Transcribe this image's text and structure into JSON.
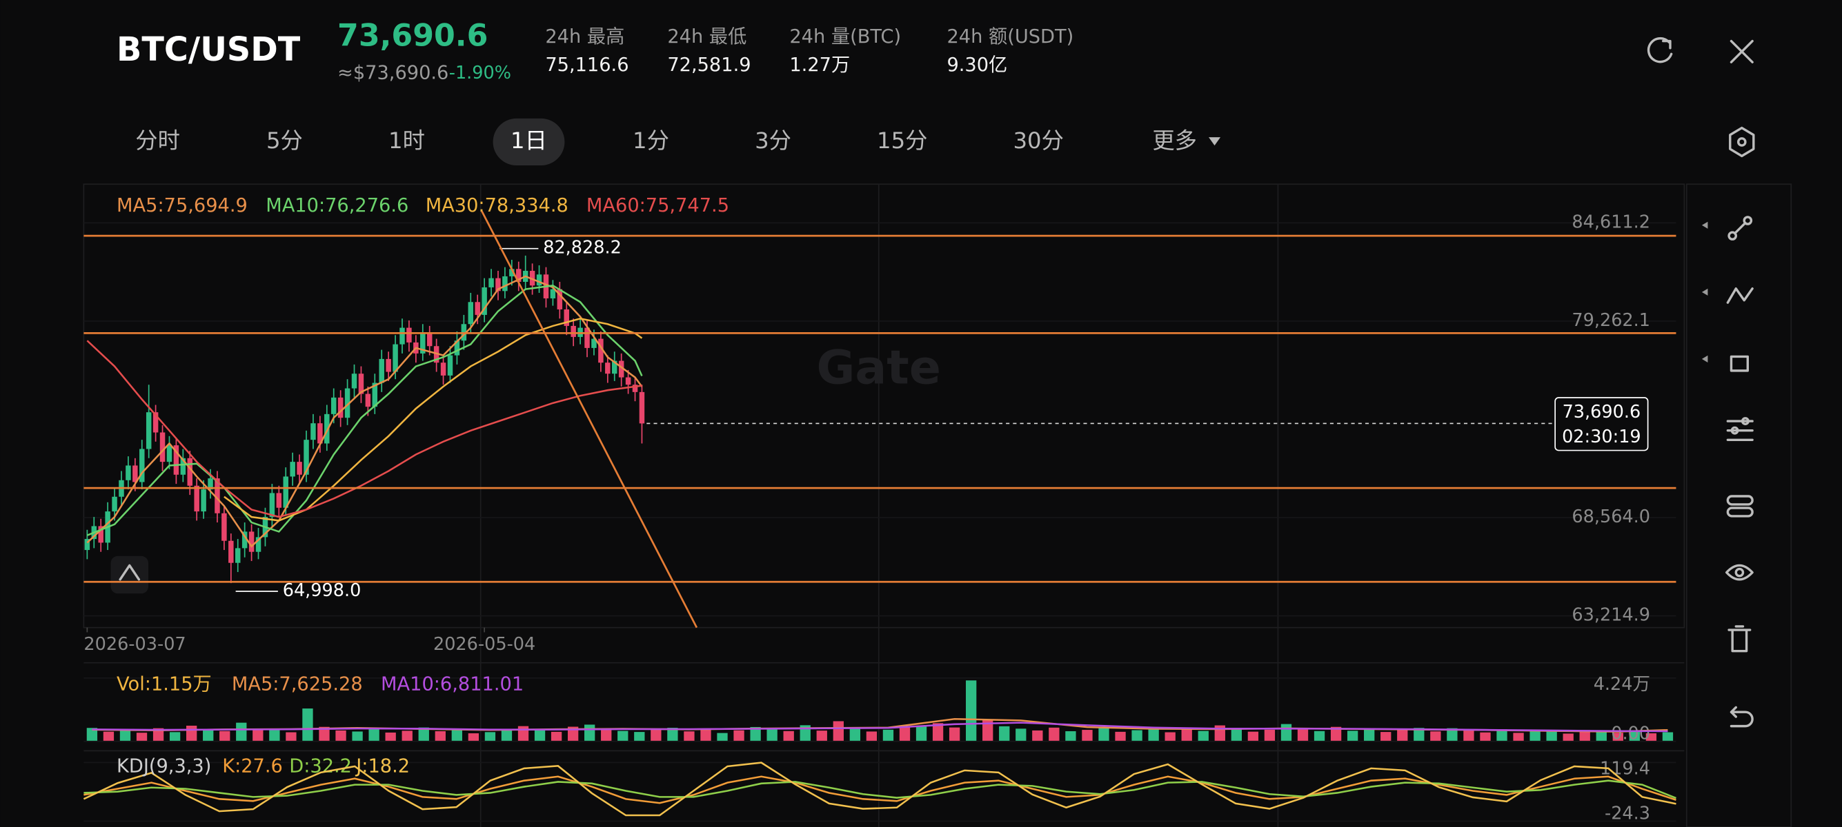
{
  "header": {
    "symbol": "BTC/USDT",
    "price": "73,690.6",
    "approx": "≈$73,690.6",
    "change": "-1.90%",
    "stats": [
      {
        "label": "24h  最高",
        "value": "75,116.6"
      },
      {
        "label": "24h  最低",
        "value": "72,581.9"
      },
      {
        "label": "24h  量(BTC)",
        "value": "1.27万"
      },
      {
        "label": "24h  额(USDT)",
        "value": "9.30亿"
      }
    ]
  },
  "tabs": {
    "items": [
      "分时",
      "5分",
      "1时",
      "1日",
      "1分",
      "3分",
      "15分",
      "30分",
      "更多"
    ],
    "active": 3
  },
  "watermark": "Gate",
  "chart_data": [
    {
      "type": "candlestick",
      "up_color": "#2ebd85",
      "down_color": "#e8456b",
      "xlim": [
        -0.5,
        232
      ],
      "ylim": [
        62576,
        86654
      ],
      "xticks": [
        {
          "value": 0,
          "label": "2026-03-07"
        },
        {
          "value": 58,
          "label": "2026-05-04"
        }
      ],
      "yticks": [
        {
          "value": 84611.2,
          "label": "84,611.2"
        },
        {
          "value": 79262.1,
          "label": "79,262.1"
        },
        {
          "value": 68564.0,
          "label": "68,564.0"
        },
        {
          "value": 63214.9,
          "label": "63,214.9"
        }
      ],
      "high_label": "82,828.2",
      "low_label": "64,998.0",
      "last_price": {
        "value": 73690.6,
        "label": "73,690.6"
      },
      "countdown": "02:30:19",
      "candles": {
        "open": [
          66800,
          67400,
          68100,
          67200,
          68900,
          69700,
          70600,
          71400,
          70500,
          72300,
          74300,
          73200,
          71600,
          72500,
          70900,
          71800,
          70300,
          68900,
          70100,
          70700,
          68800,
          67300,
          66100,
          66900,
          67800,
          66700,
          67500,
          68600,
          69900,
          69100,
          70800,
          71600,
          70900,
          72800,
          73700,
          72600,
          74200,
          75100,
          74000,
          75600,
          76400,
          75300,
          74600,
          75900,
          77200,
          76500,
          78000,
          78900,
          78100,
          77500,
          78600,
          77900,
          77000,
          76300,
          77400,
          78200,
          79100,
          80300,
          79600,
          81100,
          81600,
          80900,
          81700,
          82100,
          81400,
          82000,
          81200,
          81800,
          80500,
          81000,
          79900,
          79000,
          78400,
          78900,
          77800,
          78300,
          77000,
          76400,
          77100,
          76200,
          75800,
          75400
        ],
        "high": [
          67900,
          68600,
          68500,
          69400,
          70200,
          71100,
          71900,
          71800,
          72800,
          75800,
          74700,
          73600,
          73000,
          72900,
          72300,
          72200,
          70700,
          70600,
          71200,
          71100,
          69200,
          67700,
          67400,
          68300,
          68200,
          68000,
          69100,
          70400,
          70300,
          71300,
          72100,
          72000,
          73300,
          74200,
          74100,
          74700,
          75600,
          75500,
          76100,
          76900,
          76800,
          75700,
          76400,
          77700,
          77600,
          78500,
          79400,
          79300,
          78500,
          79100,
          79000,
          78300,
          77400,
          77900,
          78700,
          79600,
          80800,
          80700,
          81600,
          82100,
          82000,
          82200,
          82600,
          82500,
          82828.2,
          82400,
          82300,
          82200,
          81500,
          81400,
          80300,
          79400,
          79400,
          79300,
          78800,
          78700,
          77400,
          77600,
          77500,
          76600,
          76200,
          75800
        ],
        "low": [
          66300,
          66900,
          66700,
          66800,
          68400,
          69200,
          70100,
          70000,
          70100,
          71800,
          72700,
          71100,
          71200,
          70400,
          70500,
          69800,
          68400,
          68500,
          69600,
          68300,
          66800,
          64998.0,
          65600,
          66400,
          66200,
          66300,
          67000,
          68100,
          68600,
          68700,
          70300,
          70400,
          70500,
          72300,
          72100,
          72200,
          73700,
          73500,
          73600,
          75100,
          74800,
          74100,
          74200,
          75400,
          76000,
          76100,
          77500,
          77600,
          77000,
          77100,
          77400,
          76500,
          75800,
          75900,
          76900,
          77700,
          78600,
          79100,
          79200,
          80600,
          80400,
          80500,
          81200,
          80900,
          81000,
          80700,
          80800,
          80000,
          80100,
          79400,
          78500,
          77900,
          78000,
          77300,
          77400,
          76500,
          75900,
          76000,
          75700,
          75300,
          74900,
          72600
        ],
        "close": [
          67400,
          68100,
          67200,
          68900,
          69700,
          70600,
          71400,
          70500,
          72300,
          74300,
          73200,
          71600,
          72500,
          70900,
          71800,
          70300,
          68900,
          70100,
          70700,
          68800,
          67300,
          66100,
          66900,
          67800,
          66700,
          67500,
          68600,
          69900,
          69100,
          70800,
          71600,
          70900,
          72800,
          73700,
          72600,
          74200,
          75100,
          74000,
          75600,
          76400,
          75300,
          74600,
          75900,
          77200,
          76500,
          78000,
          78900,
          78100,
          77500,
          78600,
          77900,
          77000,
          76300,
          77400,
          78200,
          79100,
          80300,
          79600,
          81100,
          81600,
          80900,
          81700,
          82100,
          81400,
          82000,
          81200,
          81800,
          80500,
          81000,
          79900,
          79000,
          78400,
          78900,
          77800,
          78300,
          77000,
          76400,
          77100,
          76200,
          75800,
          75400,
          73690.6
        ]
      },
      "series": [
        {
          "name": "MA5:75,694.9",
          "color": "#e8904a",
          "x": [
            0,
            4,
            8,
            12,
            16,
            20,
            24,
            28,
            32,
            36,
            40,
            44,
            48,
            52,
            56,
            60,
            64,
            68,
            72,
            76,
            80,
            81
          ],
          "values": [
            67200,
            68600,
            71000,
            72600,
            70800,
            69200,
            67000,
            68400,
            71100,
            74000,
            75400,
            76100,
            77800,
            77400,
            78900,
            81000,
            81700,
            81100,
            79500,
            77300,
            76200,
            75694.9
          ]
        },
        {
          "name": "MA10:76,276.6",
          "color": "#6cd36c",
          "x": [
            0,
            4,
            8,
            12,
            16,
            20,
            24,
            28,
            32,
            36,
            40,
            44,
            48,
            52,
            56,
            60,
            64,
            68,
            72,
            76,
            80,
            81
          ],
          "values": [
            67600,
            68200,
            69800,
            71400,
            71500,
            70200,
            68300,
            67800,
            69500,
            72000,
            74000,
            75300,
            76800,
            77300,
            78000,
            79800,
            81000,
            81200,
            80300,
            78500,
            77100,
            76276.6
          ]
        },
        {
          "name": "MA30:78,334.8",
          "color": "#f0b540",
          "x": [
            20,
            24,
            28,
            32,
            36,
            40,
            44,
            48,
            52,
            56,
            60,
            64,
            68,
            72,
            76,
            80,
            81
          ],
          "values": [
            69700,
            68600,
            68400,
            69000,
            70300,
            71700,
            73000,
            74500,
            75700,
            76800,
            77600,
            78500,
            79000,
            79400,
            79100,
            78600,
            78334.8
          ]
        },
        {
          "name": "MA60:75,747.5",
          "color": "#e54d4d",
          "x": [
            0,
            4,
            8,
            12,
            16,
            20,
            24,
            28,
            32,
            36,
            40,
            44,
            48,
            52,
            56,
            60,
            64,
            68,
            72,
            76,
            80,
            81
          ],
          "values": [
            78200,
            76800,
            75000,
            73300,
            71600,
            70200,
            69000,
            68600,
            69000,
            69600,
            70300,
            71100,
            72000,
            72700,
            73300,
            73800,
            74300,
            74800,
            75200,
            75500,
            75700,
            75747.5
          ]
        }
      ]
    },
    {
      "type": "bar",
      "up_color": "#2ebd85",
      "down_color": "#e8456b",
      "label": "Vol:1.15万",
      "xlim": [
        -0.5,
        95.5
      ],
      "ylim": [
        0,
        42400
      ],
      "yticks": [
        {
          "value": 42400,
          "label": "4.24万"
        },
        {
          "value": 0,
          "label": "0.00"
        }
      ],
      "values": [
        9000,
        6500,
        7200,
        5800,
        8800,
        6200,
        10500,
        7400,
        6900,
        12500,
        7800,
        8200,
        6100,
        22000,
        9700,
        7300,
        6600,
        8400,
        5900,
        7100,
        9300,
        6800,
        7600,
        5400,
        6200,
        8100,
        10200,
        7700,
        6400,
        9800,
        11200,
        8600,
        7000,
        6300,
        7900,
        9100,
        6700,
        8300,
        5600,
        7400,
        9600,
        8000,
        6900,
        10800,
        7200,
        13500,
        8700,
        6600,
        7800,
        9900,
        10400,
        12200,
        9300,
        40800,
        14600,
        10100,
        8500,
        7300,
        9200,
        6800,
        7700,
        8900,
        6400,
        7500,
        9400,
        6100,
        8200,
        7000,
        10700,
        9100,
        6500,
        7800,
        11600,
        8400,
        6900,
        9700,
        7100,
        8600,
        6300,
        7900,
        9000,
        6700,
        8800,
        7200,
        6000,
        8100,
        5700,
        7400,
        6600,
        5200,
        7600,
        6200,
        5800,
        6900,
        5400,
        6100
      ],
      "rising": [
        1,
        0,
        1,
        0,
        0,
        1,
        0,
        1,
        0,
        1,
        0,
        1,
        0,
        1,
        0,
        0,
        1,
        1,
        0,
        0,
        1,
        0,
        1,
        0,
        1,
        1,
        0,
        1,
        0,
        0,
        1,
        0,
        1,
        1,
        0,
        1,
        0,
        0,
        1,
        0,
        1,
        1,
        0,
        1,
        0,
        0,
        1,
        0,
        1,
        0,
        1,
        0,
        0,
        1,
        0,
        1,
        1,
        0,
        0,
        1,
        0,
        1,
        0,
        1,
        1,
        0,
        0,
        1,
        0,
        1,
        0,
        0,
        1,
        0,
        1,
        0,
        1,
        1,
        0,
        0,
        1,
        0,
        1,
        0,
        0,
        1,
        0,
        1,
        1,
        0,
        0,
        1,
        0,
        1,
        0,
        1
      ],
      "series": [
        {
          "name": "MA5:7,625.28",
          "color": "#e8904a",
          "x": [
            0,
            4,
            8,
            12,
            16,
            20,
            24,
            28,
            32,
            36,
            40,
            44,
            48,
            52,
            56,
            60,
            64,
            68,
            72,
            76,
            80,
            84,
            88,
            92,
            95
          ],
          "values": [
            7800,
            7400,
            8000,
            8200,
            9000,
            8300,
            7600,
            8100,
            8400,
            8000,
            8600,
            8900,
            9200,
            15000,
            14000,
            9500,
            8400,
            8200,
            8700,
            8300,
            7900,
            7600,
            7000,
            6500,
            7625.28
          ]
        },
        {
          "name": "MA10:6,811.01",
          "color": "#b44ee0",
          "x": [
            0,
            4,
            8,
            12,
            16,
            20,
            24,
            28,
            32,
            36,
            40,
            44,
            48,
            52,
            56,
            60,
            64,
            68,
            72,
            76,
            80,
            84,
            88,
            92,
            95
          ],
          "values": [
            8000,
            7700,
            7900,
            8100,
            8600,
            8500,
            7900,
            7900,
            8200,
            8200,
            8400,
            8700,
            9000,
            11500,
            12500,
            10800,
            9200,
            8500,
            8500,
            8400,
            8100,
            7700,
            7300,
            6900,
            6811.01
          ]
        }
      ]
    },
    {
      "type": "line",
      "label": "KDJ(9,3,3)",
      "xlim": [
        0,
        47
      ],
      "ylim": [
        -24.3,
        119.4
      ],
      "yticks": [
        119.4,
        -24.3
      ],
      "series": [
        {
          "name": "K:27.6",
          "color": "#f29d38",
          "values": [
            40,
            55,
            70,
            50,
            30,
            25,
            45,
            65,
            80,
            60,
            35,
            30,
            55,
            75,
            85,
            60,
            30,
            20,
            40,
            70,
            85,
            70,
            45,
            30,
            25,
            50,
            70,
            75,
            55,
            35,
            40,
            65,
            85,
            70,
            45,
            30,
            35,
            55,
            75,
            80,
            65,
            50,
            40,
            60,
            80,
            85,
            55,
            27.6
          ]
        },
        {
          "name": "D:32.2",
          "color": "#8fcf4a",
          "values": [
            45,
            48,
            58,
            55,
            45,
            35,
            38,
            50,
            65,
            65,
            50,
            40,
            45,
            60,
            72,
            68,
            50,
            35,
            35,
            50,
            68,
            72,
            58,
            42,
            33,
            40,
            55,
            65,
            62,
            48,
            42,
            52,
            70,
            72,
            58,
            42,
            36,
            45,
            60,
            70,
            68,
            58,
            48,
            52,
            65,
            75,
            65,
            32.2
          ]
        },
        {
          "name": "J:18.2",
          "color": "#f2c14e",
          "values": [
            30,
            69,
            94,
            40,
            0,
            5,
            59,
            95,
            110,
            50,
            5,
            10,
            75,
            105,
            111,
            44,
            -10,
            -10,
            50,
            110,
            119,
            66,
            19,
            6,
            9,
            70,
            100,
            95,
            41,
            9,
            36,
            91,
            115,
            66,
            19,
            6,
            33,
            75,
            105,
            100,
            59,
            34,
            24,
            76,
            110,
            105,
            35,
            18.2
          ]
        }
      ]
    }
  ]
}
